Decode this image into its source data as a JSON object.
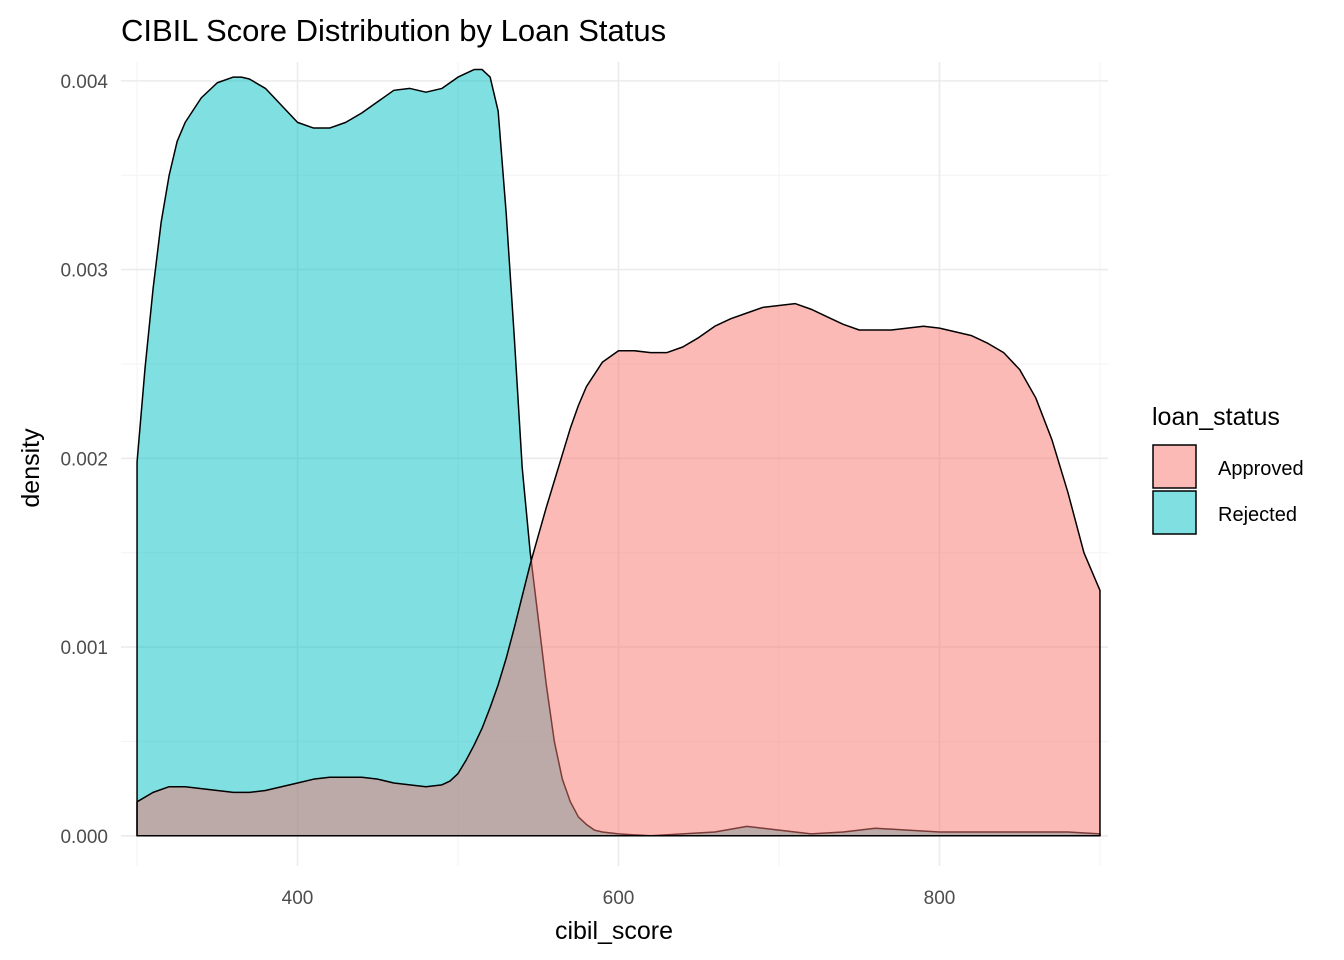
{
  "chart_data": {
    "type": "area",
    "title": "CIBIL Score Distribution by Loan Status",
    "xlabel": "cibil_score",
    "ylabel": "density",
    "xlim": [
      290,
      905
    ],
    "ylim": [
      -0.00016,
      0.0041
    ],
    "x_ticks": [
      {
        "value": 400,
        "label": "400"
      },
      {
        "value": 600,
        "label": "600"
      },
      {
        "value": 800,
        "label": "800"
      }
    ],
    "y_ticks": [
      {
        "value": 0.0,
        "label": "0.000"
      },
      {
        "value": 0.001,
        "label": "0.001"
      },
      {
        "value": 0.002,
        "label": "0.002"
      },
      {
        "value": 0.003,
        "label": "0.003"
      },
      {
        "value": 0.004,
        "label": "0.004"
      }
    ],
    "grid": true,
    "legend": {
      "title": "loan_status",
      "position": "right"
    },
    "series": [
      {
        "name": "Rejected",
        "color": "#00BFC4",
        "x": [
          300,
          305,
          310,
          315,
          320,
          325,
          330,
          340,
          350,
          360,
          365,
          370,
          380,
          390,
          400,
          410,
          420,
          430,
          440,
          450,
          460,
          470,
          480,
          490,
          500,
          510,
          515,
          520,
          525,
          530,
          535,
          540,
          545,
          550,
          555,
          560,
          565,
          570,
          575,
          580,
          585,
          590,
          600,
          620,
          640,
          660,
          680,
          700,
          720,
          740,
          760,
          780,
          800,
          820,
          840,
          860,
          880,
          900
        ],
        "y": [
          0.00198,
          0.00248,
          0.0029,
          0.00325,
          0.0035,
          0.00368,
          0.00378,
          0.00391,
          0.00399,
          0.00402,
          0.00402,
          0.00401,
          0.00396,
          0.00387,
          0.00378,
          0.00375,
          0.00375,
          0.00378,
          0.00383,
          0.00389,
          0.00395,
          0.00396,
          0.00394,
          0.00396,
          0.00402,
          0.00406,
          0.00406,
          0.00402,
          0.00384,
          0.0033,
          0.00265,
          0.00195,
          0.0015,
          0.00115,
          0.0008,
          0.0005,
          0.0003,
          0.00018,
          0.0001,
          6e-05,
          3e-05,
          2e-05,
          1e-05,
          0.0,
          1e-05,
          2e-05,
          5e-05,
          3e-05,
          1e-05,
          2e-05,
          4e-05,
          3e-05,
          2e-05,
          2e-05,
          2e-05,
          2e-05,
          2e-05,
          1e-05
        ]
      },
      {
        "name": "Approved",
        "color": "#F8766D",
        "x": [
          300,
          310,
          320,
          330,
          340,
          350,
          360,
          370,
          380,
          390,
          400,
          410,
          420,
          430,
          440,
          450,
          460,
          470,
          480,
          490,
          495,
          500,
          505,
          510,
          515,
          520,
          525,
          530,
          535,
          540,
          545,
          550,
          555,
          560,
          565,
          570,
          575,
          580,
          590,
          600,
          610,
          620,
          630,
          640,
          650,
          660,
          670,
          680,
          690,
          700,
          710,
          720,
          730,
          740,
          750,
          760,
          770,
          780,
          790,
          800,
          810,
          820,
          830,
          840,
          850,
          860,
          870,
          880,
          890,
          900
        ],
        "y": [
          0.00018,
          0.00023,
          0.00026,
          0.00026,
          0.00025,
          0.00024,
          0.00023,
          0.00023,
          0.00024,
          0.00026,
          0.00028,
          0.0003,
          0.00031,
          0.00031,
          0.00031,
          0.0003,
          0.00028,
          0.00027,
          0.00026,
          0.00027,
          0.00029,
          0.00033,
          0.0004,
          0.00048,
          0.00057,
          0.00068,
          0.0008,
          0.00094,
          0.0011,
          0.00127,
          0.00144,
          0.00159,
          0.00174,
          0.00188,
          0.00202,
          0.00216,
          0.00228,
          0.00238,
          0.00251,
          0.00257,
          0.00257,
          0.00256,
          0.00256,
          0.00259,
          0.00264,
          0.0027,
          0.00274,
          0.00277,
          0.0028,
          0.00281,
          0.00282,
          0.00279,
          0.00275,
          0.00271,
          0.00268,
          0.00268,
          0.00268,
          0.00269,
          0.0027,
          0.00269,
          0.00267,
          0.00265,
          0.00261,
          0.00256,
          0.00247,
          0.00232,
          0.0021,
          0.00182,
          0.0015,
          0.0013
        ]
      }
    ],
    "legend_order": [
      "Approved",
      "Rejected"
    ]
  }
}
